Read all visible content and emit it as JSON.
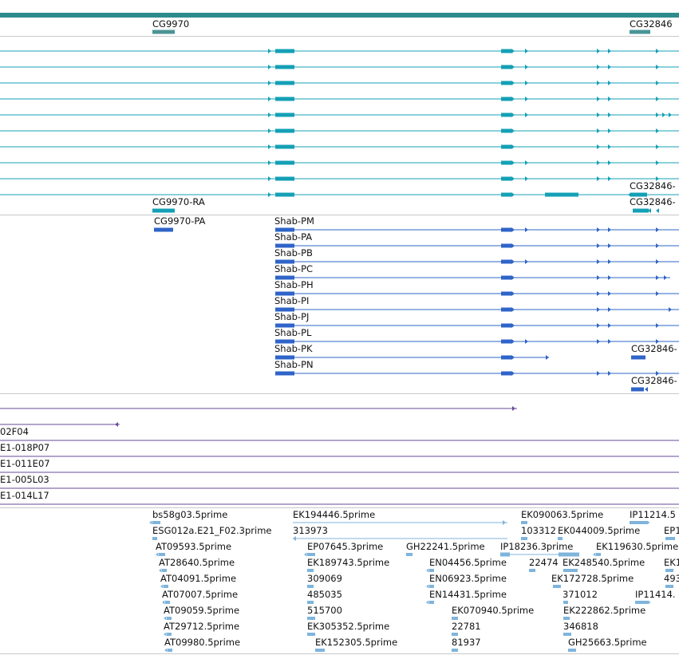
{
  "colors": {
    "scaffold": "#2e8b8b",
    "gene_teal": "#4a9494",
    "transcript": "#14a0b6",
    "protein": "#2f64c8",
    "clone": "#6a4a9a",
    "est": "#7fb4dc",
    "separator": "#c8c8c8"
  },
  "gene_track": {
    "labels": [
      "CG9970",
      "CG32846"
    ]
  },
  "transcript_track": {
    "labels": [
      "CG9970-RA",
      "CG32846-",
      "CG32846-"
    ]
  },
  "protein_track": {
    "labels": [
      "CG9970-PA",
      "Shab-PM",
      "Shab-PA",
      "Shab-PB",
      "Shab-PC",
      "Shab-PH",
      "Shab-PI",
      "Shab-PJ",
      "Shab-PL",
      "Shab-PK",
      "Shab-PN",
      "CG32846-",
      "CG32846-"
    ]
  },
  "clone_track": {
    "labels": [
      "02F04",
      "E1-018P07",
      "E1-011E07",
      "E1-005L03",
      "E1-014L17"
    ]
  },
  "est_track": {
    "labels": [
      "bs58g03.5prime",
      "ESG012a.E21_F02.3prime",
      "AT09593.5prime",
      "AT28640.5prime",
      "AT04091.5prime",
      "AT07007.5prime",
      "AT09059.5prime",
      "AT29712.5prime",
      "AT09980.5prime",
      "EK194446.5prime",
      "313973",
      "EP07645.3prime",
      "EK189743.5prime",
      "309069",
      "485035",
      "515700",
      "EK305352.5prime",
      "EK152305.5prime",
      "GH22241.5prime",
      "EN04456.5prime",
      "EN06923.5prime",
      "EN14431.5prime",
      "EK070940.5prime",
      "22781",
      "81937",
      "EK090063.5prime",
      "103312",
      "EK044009.5prime",
      "IP18236.3prime",
      "22474",
      "EK248540.5prime",
      "EK172728.5prime",
      "371012",
      "EK222862.5prime",
      "346818",
      "GH25663.5prime",
      "IP11214.5",
      "EP1",
      "EK119630.5prime",
      "EK1",
      "493",
      "IP11414."
    ]
  }
}
